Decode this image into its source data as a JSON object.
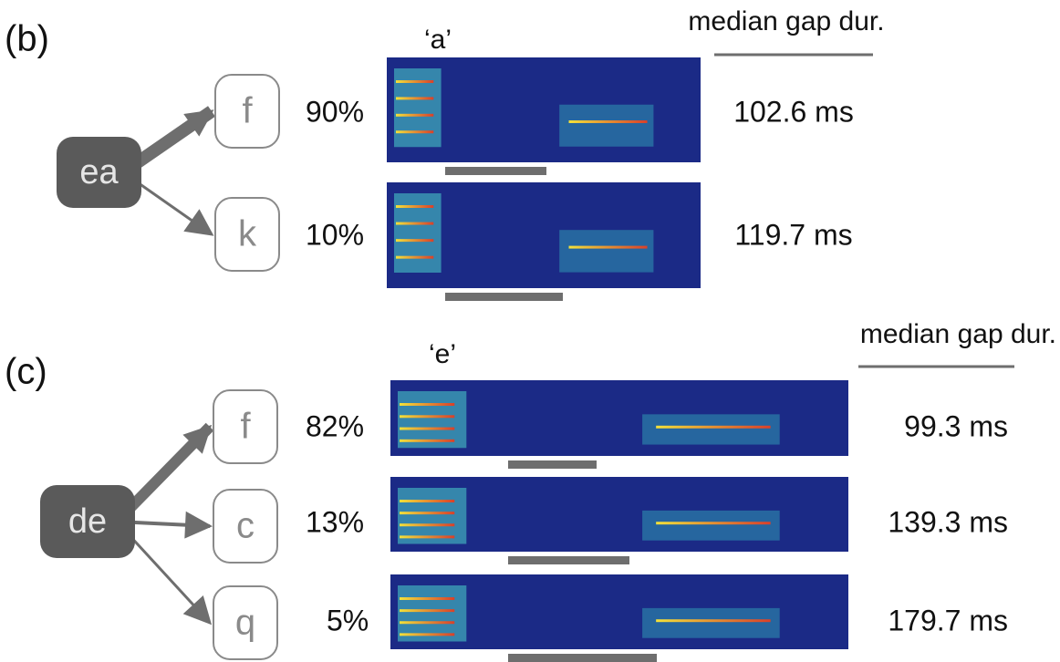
{
  "panels": [
    {
      "label": "(b)",
      "syllable": "‘a’",
      "header": "median gap dur.",
      "source": "ea",
      "branches": [
        {
          "target": "f",
          "percent": "90%",
          "gap": "102.6 ms"
        },
        {
          "target": "k",
          "percent": "10%",
          "gap": "119.7 ms"
        }
      ]
    },
    {
      "label": "(c)",
      "syllable": "‘e’",
      "header": "median gap dur.",
      "source": "de",
      "branches": [
        {
          "target": "f",
          "percent": "82%",
          "gap": "99.3 ms"
        },
        {
          "target": "c",
          "percent": "13%",
          "gap": "139.3 ms"
        },
        {
          "target": "q",
          "percent": "5%",
          "gap": "179.7 ms"
        }
      ]
    }
  ]
}
